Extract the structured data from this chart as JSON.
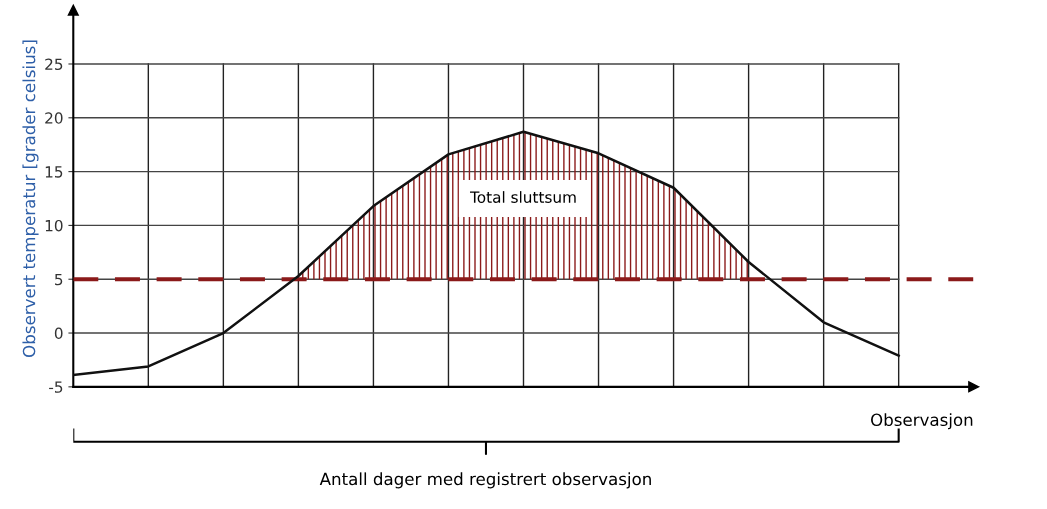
{
  "chart_data": {
    "type": "line",
    "categories": [
      null,
      null,
      null,
      null,
      null,
      null,
      null,
      null,
      null,
      null,
      null,
      null
    ],
    "series": [
      {
        "color": "#111111",
        "values": [
          -3.9,
          -3.1,
          0,
          5.3,
          11.8,
          16.6,
          18.7,
          16.7,
          13.5,
          6.6,
          1,
          -2.1
        ],
        "lower": [
          null,
          null,
          null,
          5,
          5,
          5,
          5,
          5,
          5,
          5,
          null,
          null
        ],
        "upper": [
          null,
          null,
          null,
          5.3,
          11.8,
          16.6,
          18.7,
          16.7,
          13.5,
          6.6,
          null,
          null
        ]
      }
    ],
    "ylim": [
      -5,
      30
    ],
    "yticks": [
      -5,
      0,
      5,
      10,
      15,
      20,
      25
    ],
    "ylabel": "Observert temperatur [grader celsius]",
    "xlabel": "Observasjon",
    "ref_lines": [
      {
        "axis": "y",
        "value": 5,
        "color": "#8b1a1a",
        "line_style": "dashed"
      }
    ],
    "annotations": [
      "Total sluttsum",
      "Antall dager med registrert observasjon"
    ],
    "grid": true,
    "tick_labels": "y",
    "marker": "none",
    "line_style": "solid"
  }
}
